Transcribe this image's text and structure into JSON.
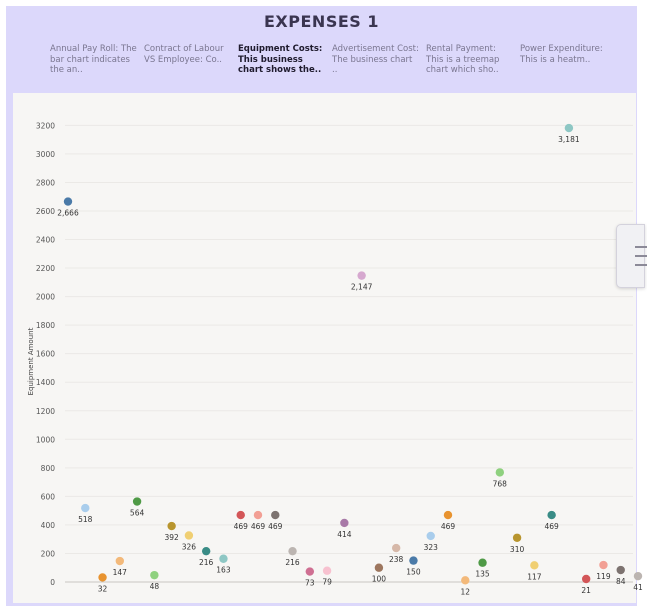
{
  "page": {
    "title": "EXPENSES 1"
  },
  "tabs": [
    {
      "title": "Annual Pay Roll:",
      "desc": "The bar chart indicates the an..",
      "active": false
    },
    {
      "title": "Contract of Labour VS Employee:",
      "desc": "Co..",
      "active": false
    },
    {
      "title": "Equipment Costs:",
      "desc": "This business chart shows the..",
      "active": true
    },
    {
      "title": "Advertisement Cost:",
      "desc": "The business chart ..",
      "active": false
    },
    {
      "title": "Rental Payment:",
      "desc": "This is a treemap chart which sho..",
      "active": false
    },
    {
      "title": "Power Expenditure:",
      "desc": "This is a heatm..",
      "active": false
    }
  ],
  "colors": {
    "frame": "#dcd8fb",
    "panel": "#f7f6f4"
  },
  "chart_data": {
    "type": "scatter",
    "title": "",
    "xlabel": "",
    "ylabel": "Equipment Amount",
    "ylim": [
      0,
      3300
    ],
    "yticks": [
      0,
      200,
      400,
      600,
      800,
      1000,
      1200,
      1400,
      1600,
      1800,
      2000,
      2200,
      2400,
      2600,
      2800,
      3000,
      3200
    ],
    "grid": true,
    "points": [
      {
        "value": 2666,
        "label": "2,666",
        "color": "#4a7aa8"
      },
      {
        "value": 518,
        "label": "518",
        "color": "#a9cdec"
      },
      {
        "value": 32,
        "label": "32",
        "color": "#e8932f"
      },
      {
        "value": 147,
        "label": "147",
        "color": "#f3b97a"
      },
      {
        "value": 564,
        "label": "564",
        "color": "#4f9a46"
      },
      {
        "value": 48,
        "label": "48",
        "color": "#8fd17f"
      },
      {
        "value": 392,
        "label": "392",
        "color": "#b8952e"
      },
      {
        "value": 326,
        "label": "326",
        "color": "#f0cf72"
      },
      {
        "value": 216,
        "label": "216",
        "color": "#3a8c86"
      },
      {
        "value": 163,
        "label": "163",
        "color": "#8ec7c4"
      },
      {
        "value": 469,
        "label": "469",
        "color": "#d35658"
      },
      {
        "value": 469,
        "label": "469",
        "color": "#f29f94"
      },
      {
        "value": 469,
        "label": "469",
        "color": "#7d7370"
      },
      {
        "value": 216,
        "label": "216",
        "color": "#bcb5b1"
      },
      {
        "value": 73,
        "label": "73",
        "color": "#cf6f92"
      },
      {
        "value": 79,
        "label": "79",
        "color": "#f7c1cf"
      },
      {
        "value": 414,
        "label": "414",
        "color": "#a879a7"
      },
      {
        "value": 2147,
        "label": "2,147",
        "color": "#d6a8cf"
      },
      {
        "value": 100,
        "label": "100",
        "color": "#9d765e"
      },
      {
        "value": 238,
        "label": "238",
        "color": "#d6b8a8"
      },
      {
        "value": 150,
        "label": "150",
        "color": "#4a7aa8"
      },
      {
        "value": 323,
        "label": "323",
        "color": "#a9cdec"
      },
      {
        "value": 469,
        "label": "469",
        "color": "#e8932f"
      },
      {
        "value": 12,
        "label": "12",
        "color": "#f3b97a"
      },
      {
        "value": 135,
        "label": "135",
        "color": "#4f9a46"
      },
      {
        "value": 768,
        "label": "768",
        "color": "#8fd17f"
      },
      {
        "value": 310,
        "label": "310",
        "color": "#b8952e"
      },
      {
        "value": 117,
        "label": "117",
        "color": "#f0cf72"
      },
      {
        "value": 469,
        "label": "469",
        "color": "#3a8c86"
      },
      {
        "value": 3181,
        "label": "3,181",
        "color": "#8ec7c4"
      },
      {
        "value": 21,
        "label": "21",
        "color": "#d35658"
      },
      {
        "value": 119,
        "label": "119",
        "color": "#f29f94"
      },
      {
        "value": 84,
        "label": "84",
        "color": "#7d7370"
      },
      {
        "value": 41,
        "label": "41",
        "color": "#bcb5b1"
      }
    ]
  }
}
